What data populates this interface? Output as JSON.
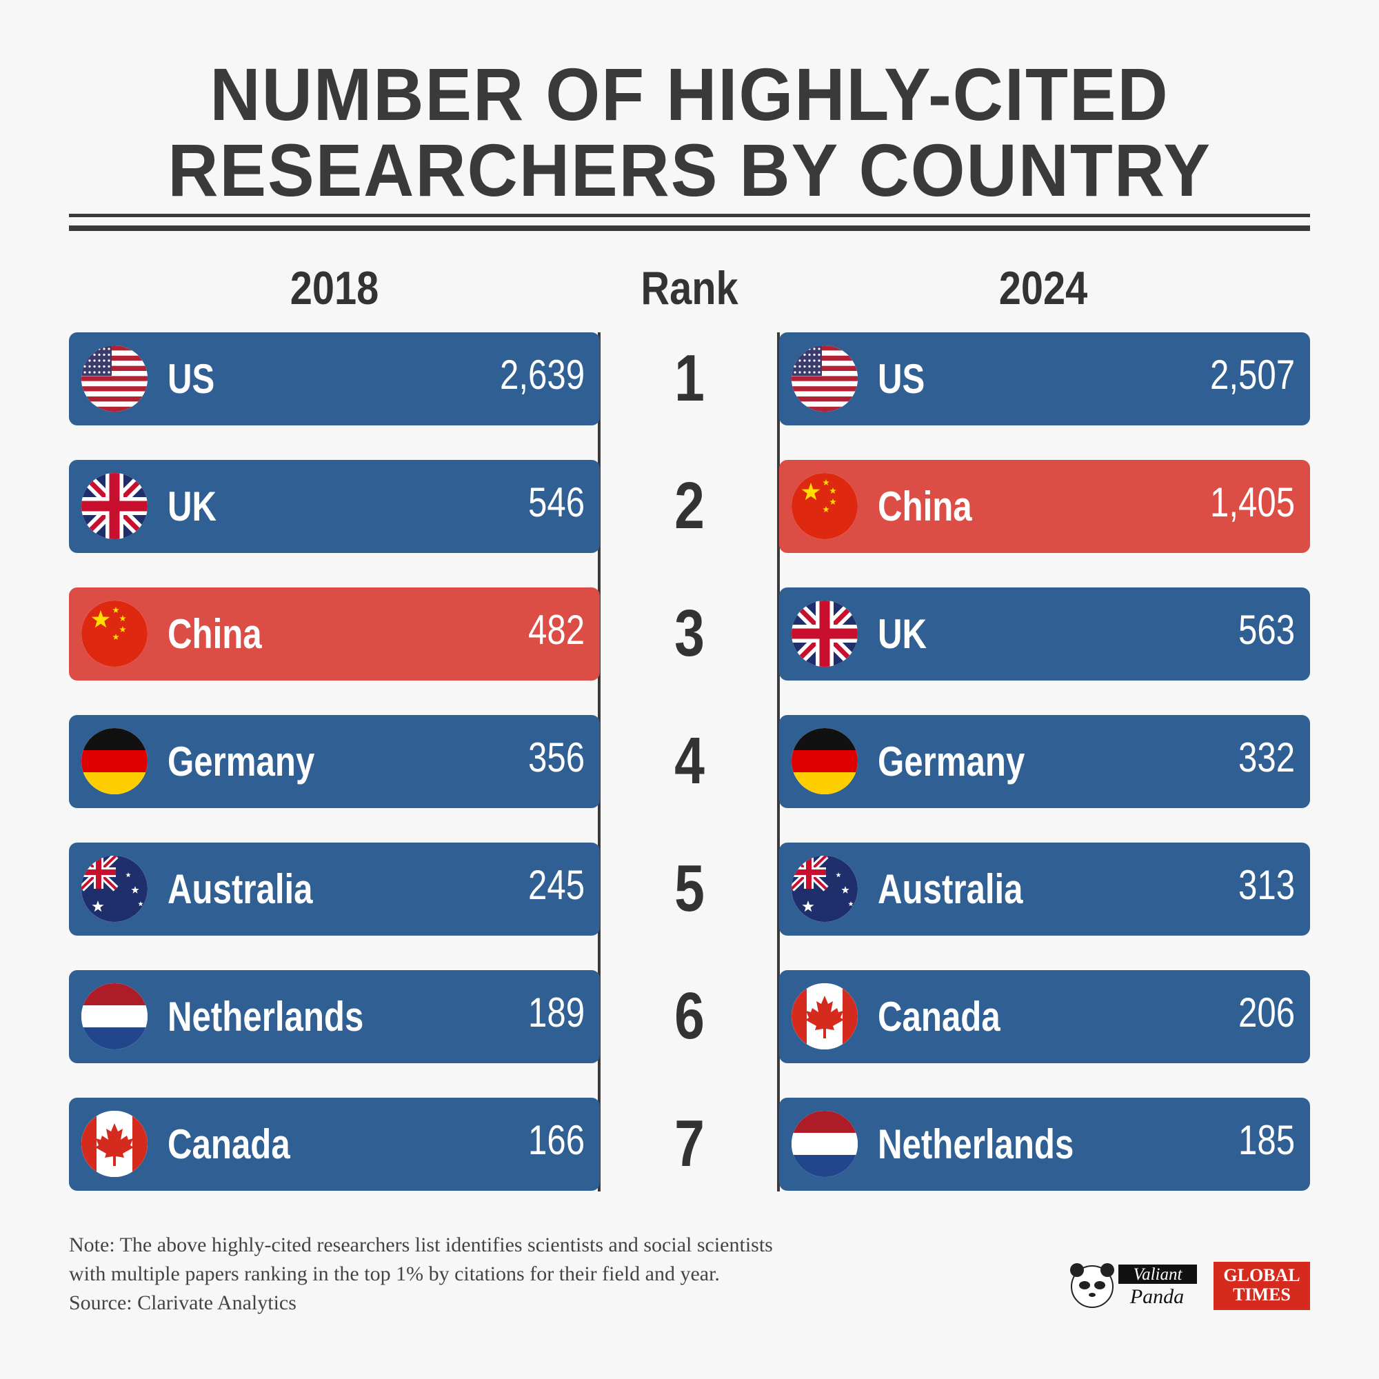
{
  "title": {
    "line1": "NUMBER OF HIGHLY-CITED",
    "line2": "RESEARCHERS BY COUNTRY"
  },
  "headers": {
    "left": "2018",
    "middle": "Rank",
    "right": "2024"
  },
  "chart_data": {
    "type": "table",
    "title": "NUMBER OF HIGHLY-CITED RESEARCHERS BY COUNTRY",
    "columns": [
      "2018",
      "Rank",
      "2024"
    ],
    "ranks": [
      "1",
      "2",
      "3",
      "4",
      "5",
      "6",
      "7"
    ],
    "left": [
      {
        "country": "US",
        "flag": "us-flag-icon",
        "value": "2,639",
        "highlight": false
      },
      {
        "country": "UK",
        "flag": "uk-flag-icon",
        "value": "546",
        "highlight": false
      },
      {
        "country": "China",
        "flag": "china-flag-icon",
        "value": "482",
        "highlight": true
      },
      {
        "country": "Germany",
        "flag": "germany-flag-icon",
        "value": "356",
        "highlight": false
      },
      {
        "country": "Australia",
        "flag": "australia-flag-icon",
        "value": "245",
        "highlight": false
      },
      {
        "country": "Netherlands",
        "flag": "netherlands-flag-icon",
        "value": "189",
        "highlight": false
      },
      {
        "country": "Canada",
        "flag": "canada-flag-icon",
        "value": "166",
        "highlight": false
      }
    ],
    "right": [
      {
        "country": "US",
        "flag": "us-flag-icon",
        "value": "2,507",
        "highlight": false
      },
      {
        "country": "China",
        "flag": "china-flag-icon",
        "value": "1,405",
        "highlight": true
      },
      {
        "country": "UK",
        "flag": "uk-flag-icon",
        "value": "563",
        "highlight": false
      },
      {
        "country": "Germany",
        "flag": "germany-flag-icon",
        "value": "332",
        "highlight": false
      },
      {
        "country": "Australia",
        "flag": "australia-flag-icon",
        "value": "313",
        "highlight": false
      },
      {
        "country": "Canada",
        "flag": "canada-flag-icon",
        "value": "206",
        "highlight": false
      },
      {
        "country": "Netherlands",
        "flag": "netherlands-flag-icon",
        "value": "185",
        "highlight": false
      }
    ]
  },
  "colors": {
    "bar": "#2f5f93",
    "highlight": "#db4d45",
    "text_dark": "#3a3a3a",
    "background": "#f7f7f7"
  },
  "note": {
    "line1": "Note: The above highly-cited researchers list identifies scientists and social scientists",
    "line2": "with multiple papers ranking in the top 1% by citations for their field and year.",
    "source": "Source: Clarivate Analytics"
  },
  "logos": {
    "panda_line1": "Valiant",
    "panda_line2": "Panda",
    "gt_line1": "GLOBAL",
    "gt_line2": "TIMES"
  }
}
